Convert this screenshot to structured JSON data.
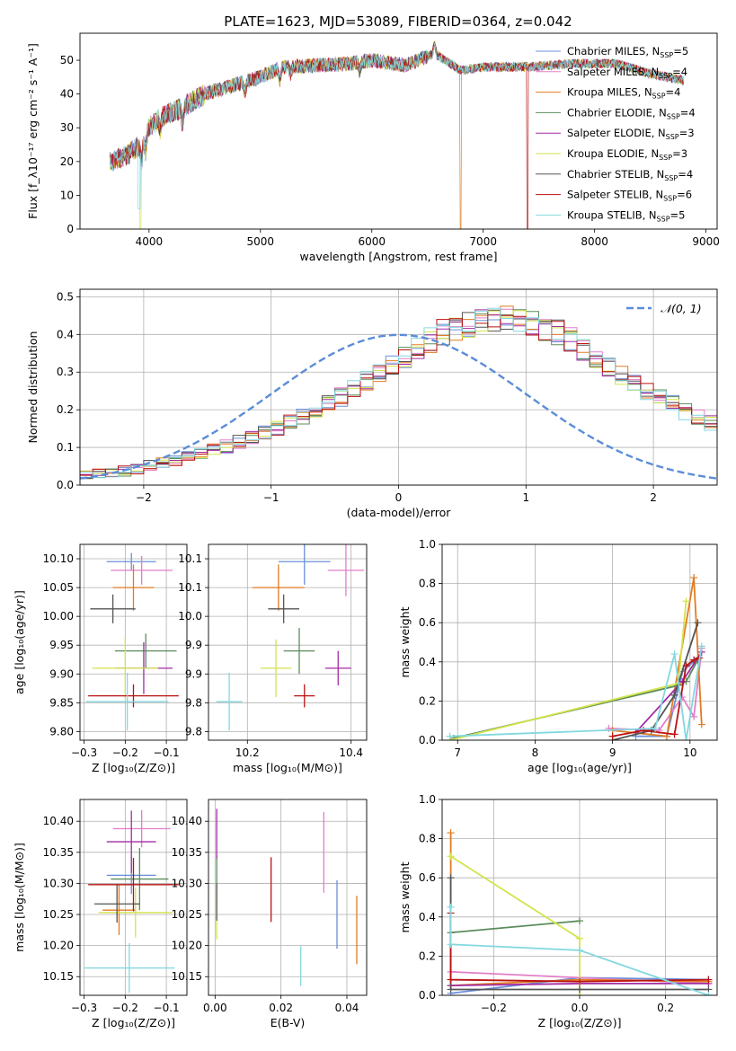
{
  "figure": {
    "colors": [
      "#6a8fd8",
      "#e27ec8",
      "#e07b22",
      "#5b8c5b",
      "#a42ba4",
      "#d4e34a",
      "#555555",
      "#bb1111",
      "#83d8e0"
    ]
  },
  "chart_data": [
    {
      "id": "spectrum",
      "type": "line",
      "title": "PLATE=1623, MJD=53089, FIBERID=0364, z=0.042",
      "xlabel": "wavelength [Angstrom, rest frame]",
      "ylabel": "Flux [f_λ10⁻¹⁷ erg cm⁻² s⁻¹ A⁻¹]",
      "xlim": [
        3380,
        9100
      ],
      "ylim": [
        0,
        58
      ],
      "xticks": [
        4000,
        5000,
        6000,
        7000,
        8000,
        9000
      ],
      "yticks": [
        0,
        10,
        20,
        30,
        40,
        50
      ],
      "grid": false,
      "legend_position": "top-right",
      "series": [
        {
          "name": "Chabrier MILES, N_SSP=5"
        },
        {
          "name": "Salpeter MILES, N_SSP=4"
        },
        {
          "name": "Kroupa MILES, N_SSP=4"
        },
        {
          "name": "Chabrier ELODIE, N_SSP=4"
        },
        {
          "name": "Salpeter ELODIE, N_SSP=3"
        },
        {
          "name": "Kroupa ELODIE, N_SSP=3"
        },
        {
          "name": "Chabrier STELIB, N_SSP=4"
        },
        {
          "name": "Salpeter STELIB, N_SSP=6"
        },
        {
          "name": "Kroupa STELIB, N_SSP=5"
        }
      ],
      "continuum": {
        "x": [
          3650,
          3800,
          3920,
          4000,
          4100,
          4300,
          4500,
          4800,
          5000,
          5200,
          5500,
          5800,
          6000,
          6300,
          6563,
          6800,
          7000,
          7400,
          7800,
          8200,
          8500,
          8800
        ],
        "y": [
          20,
          22,
          25,
          30,
          33,
          36,
          40,
          43,
          45,
          48,
          48.5,
          49,
          50,
          48.5,
          52,
          47,
          48,
          48,
          49,
          49,
          46,
          44
        ]
      },
      "dropouts": [
        {
          "x": 3920,
          "series": "Kroupa ELODIE",
          "x_end": 3925
        },
        {
          "x": 6790,
          "series": "Kroupa MILES",
          "x_end": 6800
        },
        {
          "x": 7390,
          "series": "Salpeter STELIB",
          "x_end": 7400
        }
      ]
    },
    {
      "id": "residuals",
      "type": "line",
      "xlabel": "(data-model)/error",
      "ylabel": "Normed distribution",
      "xlim": [
        -2.5,
        2.5
      ],
      "ylim": [
        0,
        0.52
      ],
      "xticks": [
        -2,
        -1,
        0,
        1,
        2
      ],
      "yticks": [
        0,
        0.1,
        0.2,
        0.3,
        0.4,
        0.5
      ],
      "grid": true,
      "legend_position": "top-right",
      "legend": [
        "𝒩(0, 1)"
      ],
      "bin_width": 0.1,
      "bins_start": -2.5,
      "histogram_base": [
        0.025,
        0.029,
        0.033,
        0.038,
        0.044,
        0.051,
        0.058,
        0.066,
        0.074,
        0.083,
        0.093,
        0.103,
        0.114,
        0.126,
        0.138,
        0.151,
        0.165,
        0.18,
        0.196,
        0.214,
        0.233,
        0.253,
        0.274,
        0.296,
        0.319,
        0.342,
        0.365,
        0.387,
        0.405,
        0.42,
        0.43,
        0.437,
        0.442,
        0.443,
        0.44,
        0.432,
        0.42,
        0.405,
        0.387,
        0.365,
        0.342,
        0.319,
        0.296,
        0.274,
        0.253,
        0.233,
        0.214,
        0.196,
        0.18,
        0.165
      ],
      "normal_curve": {
        "mean": 0,
        "sigma": 1
      }
    },
    {
      "id": "age-vs-Z",
      "type": "scatter",
      "xlabel": "Z [log₁₀(Z/Z⊙)]",
      "ylabel": "age  [log₁₀(age/yr)]",
      "xlim": [
        -0.31,
        -0.05
      ],
      "ylim": [
        9.785,
        10.125
      ],
      "xticks": [
        -0.3,
        -0.2,
        -0.1
      ],
      "yticks": [
        9.8,
        9.85,
        9.9,
        9.95,
        10.0,
        10.05,
        10.1
      ],
      "grid": true,
      "points": [
        {
          "x": -0.185,
          "y": 10.095,
          "xerr": 0.06,
          "yerr": 0.015
        },
        {
          "x": -0.16,
          "y": 10.08,
          "xerr": 0.075,
          "yerr": 0.025
        },
        {
          "x": -0.18,
          "y": 10.05,
          "xerr": 0.05,
          "yerr": 0.04
        },
        {
          "x": -0.15,
          "y": 9.94,
          "xerr": 0.075,
          "yerr": 0.03
        },
        {
          "x": -0.155,
          "y": 9.91,
          "xerr": 0.07,
          "yerr": 0.045
        },
        {
          "x": -0.2,
          "y": 9.91,
          "xerr": 0.08,
          "yerr": 0.055
        },
        {
          "x": -0.23,
          "y": 10.013,
          "xerr": 0.055,
          "yerr": 0.025
        },
        {
          "x": -0.18,
          "y": 9.862,
          "xerr": 0.11,
          "yerr": 0.02
        },
        {
          "x": -0.195,
          "y": 9.852,
          "xerr": 0.1,
          "yerr": 0.05
        }
      ]
    },
    {
      "id": "age-vs-mass",
      "type": "scatter",
      "xlabel": "mass [log₁₀(M/M⊙)]",
      "ylabel": "",
      "xlim": [
        10.125,
        10.43
      ],
      "ylim": [
        9.785,
        10.125
      ],
      "xticks": [
        10.2,
        10.4
      ],
      "yticks": [
        9.8,
        9.85,
        9.9,
        9.95,
        10.0,
        10.05,
        10.1
      ],
      "grid": true,
      "points": [
        {
          "x": 10.31,
          "y": 10.095,
          "xerr": 0.05,
          "yerr": 0.04
        },
        {
          "x": 10.39,
          "y": 10.08,
          "xerr": 0.035,
          "yerr": 0.045
        },
        {
          "x": 10.26,
          "y": 10.05,
          "xerr": 0.05,
          "yerr": 0.04
        },
        {
          "x": 10.3,
          "y": 9.94,
          "xerr": 0.03,
          "yerr": 0.04
        },
        {
          "x": 10.375,
          "y": 9.91,
          "xerr": 0.025,
          "yerr": 0.03
        },
        {
          "x": 10.255,
          "y": 9.91,
          "xerr": 0.03,
          "yerr": 0.05
        },
        {
          "x": 10.27,
          "y": 10.013,
          "xerr": 0.03,
          "yerr": 0.025
        },
        {
          "x": 10.31,
          "y": 9.862,
          "xerr": 0.02,
          "yerr": 0.02
        },
        {
          "x": 10.165,
          "y": 9.852,
          "xerr": 0.025,
          "yerr": 0.05
        }
      ]
    },
    {
      "id": "weight-vs-age",
      "type": "line",
      "xlabel": "age  [log₁₀(age/yr)]",
      "ylabel": "mass weight",
      "xlim": [
        6.8,
        10.35
      ],
      "ylim": [
        0,
        1.0
      ],
      "xticks": [
        7,
        8,
        9,
        10
      ],
      "yticks": [
        0,
        0.2,
        0.4,
        0.6,
        0.8,
        1.0
      ],
      "grid": true,
      "series": [
        {
          "x": [
            9.3,
            9.7,
            9.9,
            10.1
          ],
          "y": [
            0.02,
            0.02,
            0.35,
            0.42
          ]
        },
        {
          "x": [
            8.95,
            9.6,
            9.9,
            10.05,
            10.15
          ],
          "y": [
            0.06,
            0.05,
            0.22,
            0.12,
            0.47
          ]
        },
        {
          "x": [
            9.0,
            9.7,
            10.05,
            10.15
          ],
          "y": [
            0.05,
            0.02,
            0.83,
            0.08
          ]
        },
        {
          "x": [
            6.95,
            9.85,
            9.95,
            10.1
          ],
          "y": [
            0.01,
            0.28,
            0.3,
            0.41
          ]
        },
        {
          "x": [
            9.3,
            9.9,
            10.15
          ],
          "y": [
            0.04,
            0.3,
            0.45
          ]
        },
        {
          "x": [
            6.9,
            9.85,
            9.95
          ],
          "y": [
            0.0,
            0.29,
            0.71
          ]
        },
        {
          "x": [
            9.0,
            9.5,
            9.8,
            10.1
          ],
          "y": [
            0.0,
            0.05,
            0.23,
            0.6
          ]
        },
        {
          "x": [
            9.0,
            9.4,
            9.8,
            9.95,
            10.05,
            10.12
          ],
          "y": [
            0.02,
            0.05,
            0.03,
            0.38,
            0.41,
            0.42
          ]
        },
        {
          "x": [
            6.9,
            9.55,
            9.8,
            9.95,
            10.15
          ],
          "y": [
            0.02,
            0.06,
            0.44,
            0.0,
            0.48
          ]
        }
      ]
    },
    {
      "id": "mass-vs-Z",
      "type": "scatter",
      "xlabel": "Z [log₁₀(Z/Z⊙)]",
      "ylabel": "mass [log₁₀(M/M⊙)]",
      "xlim": [
        -0.31,
        -0.05
      ],
      "ylim": [
        10.12,
        10.435
      ],
      "xticks": [
        -0.3,
        -0.2,
        -0.1
      ],
      "yticks": [
        10.15,
        10.2,
        10.25,
        10.3,
        10.35,
        10.4
      ],
      "grid": true,
      "points": [
        {
          "x": -0.185,
          "y": 10.313,
          "xerr": 0.06,
          "yerr": 0.03
        },
        {
          "x": -0.16,
          "y": 10.388,
          "xerr": 0.07,
          "yerr": 0.03
        },
        {
          "x": -0.215,
          "y": 10.257,
          "xerr": 0.04,
          "yerr": 0.04
        },
        {
          "x": -0.165,
          "y": 10.307,
          "xerr": 0.07,
          "yerr": 0.05
        },
        {
          "x": -0.185,
          "y": 10.367,
          "xerr": 0.06,
          "yerr": 0.05
        },
        {
          "x": -0.175,
          "y": 10.253,
          "xerr": 0.09,
          "yerr": 0.04
        },
        {
          "x": -0.22,
          "y": 10.267,
          "xerr": 0.055,
          "yerr": 0.03
        },
        {
          "x": -0.18,
          "y": 10.298,
          "xerr": 0.11,
          "yerr": 0.043
        },
        {
          "x": -0.19,
          "y": 10.164,
          "xerr": 0.11,
          "yerr": 0.04
        }
      ]
    },
    {
      "id": "mass-vs-ebv",
      "type": "scatter",
      "xlabel": "E(B-V)",
      "ylabel": "",
      "xlim": [
        -0.002,
        0.046
      ],
      "ylim": [
        10.12,
        10.435
      ],
      "xticks": [
        0.0,
        0.02,
        0.04
      ],
      "yticks": [
        10.15,
        10.2,
        10.25,
        10.3,
        10.35,
        10.4
      ],
      "grid": true,
      "points": [
        {
          "x": 0.037,
          "y": 10.25,
          "yerr": 0.055
        },
        {
          "x": 0.033,
          "y": 10.35,
          "yerr": 0.065
        },
        {
          "x": 0.043,
          "y": 10.225,
          "yerr": 0.055
        },
        {
          "x": 0.0005,
          "y": 10.305,
          "yerr": 0.04
        },
        {
          "x": 0.0005,
          "y": 10.38,
          "yerr": 0.04
        },
        {
          "x": 0.0005,
          "y": 10.25,
          "yerr": 0.04
        },
        {
          "x": 0.0005,
          "y": 10.27,
          "yerr": 0.03
        },
        {
          "x": 0.017,
          "y": 10.29,
          "yerr": 0.052
        },
        {
          "x": 0.026,
          "y": 10.167,
          "yerr": 0.032
        }
      ]
    },
    {
      "id": "weight-vs-Z",
      "type": "line",
      "xlabel": "Z [log₁₀(Z/Z⊙)]",
      "ylabel": "mass weight",
      "xlim": [
        -0.32,
        0.32
      ],
      "ylim": [
        0,
        1.0
      ],
      "xticks": [
        -0.2,
        0.0,
        0.2
      ],
      "yticks": [
        0,
        0.2,
        0.4,
        0.6,
        0.8,
        1.0
      ],
      "grid": true,
      "series": [
        {
          "x": [
            -0.3,
            0.0,
            0.3
          ],
          "y": [
            0.01,
            0.09,
            0.08
          ]
        },
        {
          "x": [
            -0.3,
            0.0,
            0.3
          ],
          "y": [
            0.12,
            0.09,
            0.06
          ]
        },
        {
          "x": [
            -0.3,
            -0.3,
            0.0,
            0.3
          ],
          "y": [
            0.83,
            0.05,
            0.08,
            0.07
          ]
        },
        {
          "x": [
            -0.3,
            0.0
          ],
          "y": [
            0.32,
            0.38
          ]
        },
        {
          "x": [
            -0.3,
            0.0,
            0.3
          ],
          "y": [
            0.05,
            0.06,
            0.06
          ]
        },
        {
          "x": [
            -0.3,
            0.0,
            0.0
          ],
          "y": [
            0.71,
            0.29,
            0.0
          ]
        },
        {
          "x": [
            -0.3,
            -0.3,
            0.0,
            0.3
          ],
          "y": [
            0.6,
            0.03,
            0.03,
            0.03
          ]
        },
        {
          "x": [
            -0.3,
            -0.3,
            0.0,
            0.3
          ],
          "y": [
            0.42,
            0.08,
            0.07,
            0.08
          ]
        },
        {
          "x": [
            -0.3,
            -0.3,
            0.0,
            0.3
          ],
          "y": [
            0.45,
            0.26,
            0.23,
            0.0
          ]
        }
      ]
    }
  ]
}
